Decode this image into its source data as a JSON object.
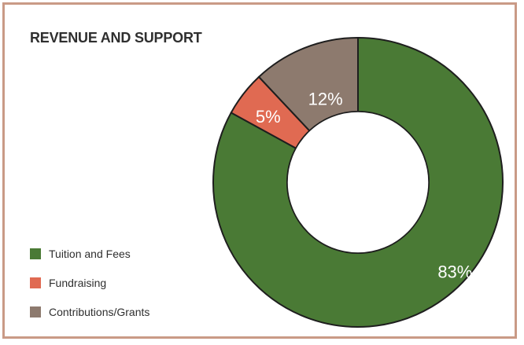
{
  "chart_data": {
    "type": "pie",
    "title": "REVENUE AND SUPPORT",
    "categories": [
      "Tuition and Fees",
      "Fundraising",
      "Contributions/Grants"
    ],
    "values": [
      83,
      5,
      12
    ],
    "labels": [
      "83%",
      "5%",
      "12%"
    ],
    "colors": [
      "#4a7a35",
      "#e06a52",
      "#8d7a6e"
    ],
    "donut": true,
    "legend_position": "bottom-left"
  }
}
